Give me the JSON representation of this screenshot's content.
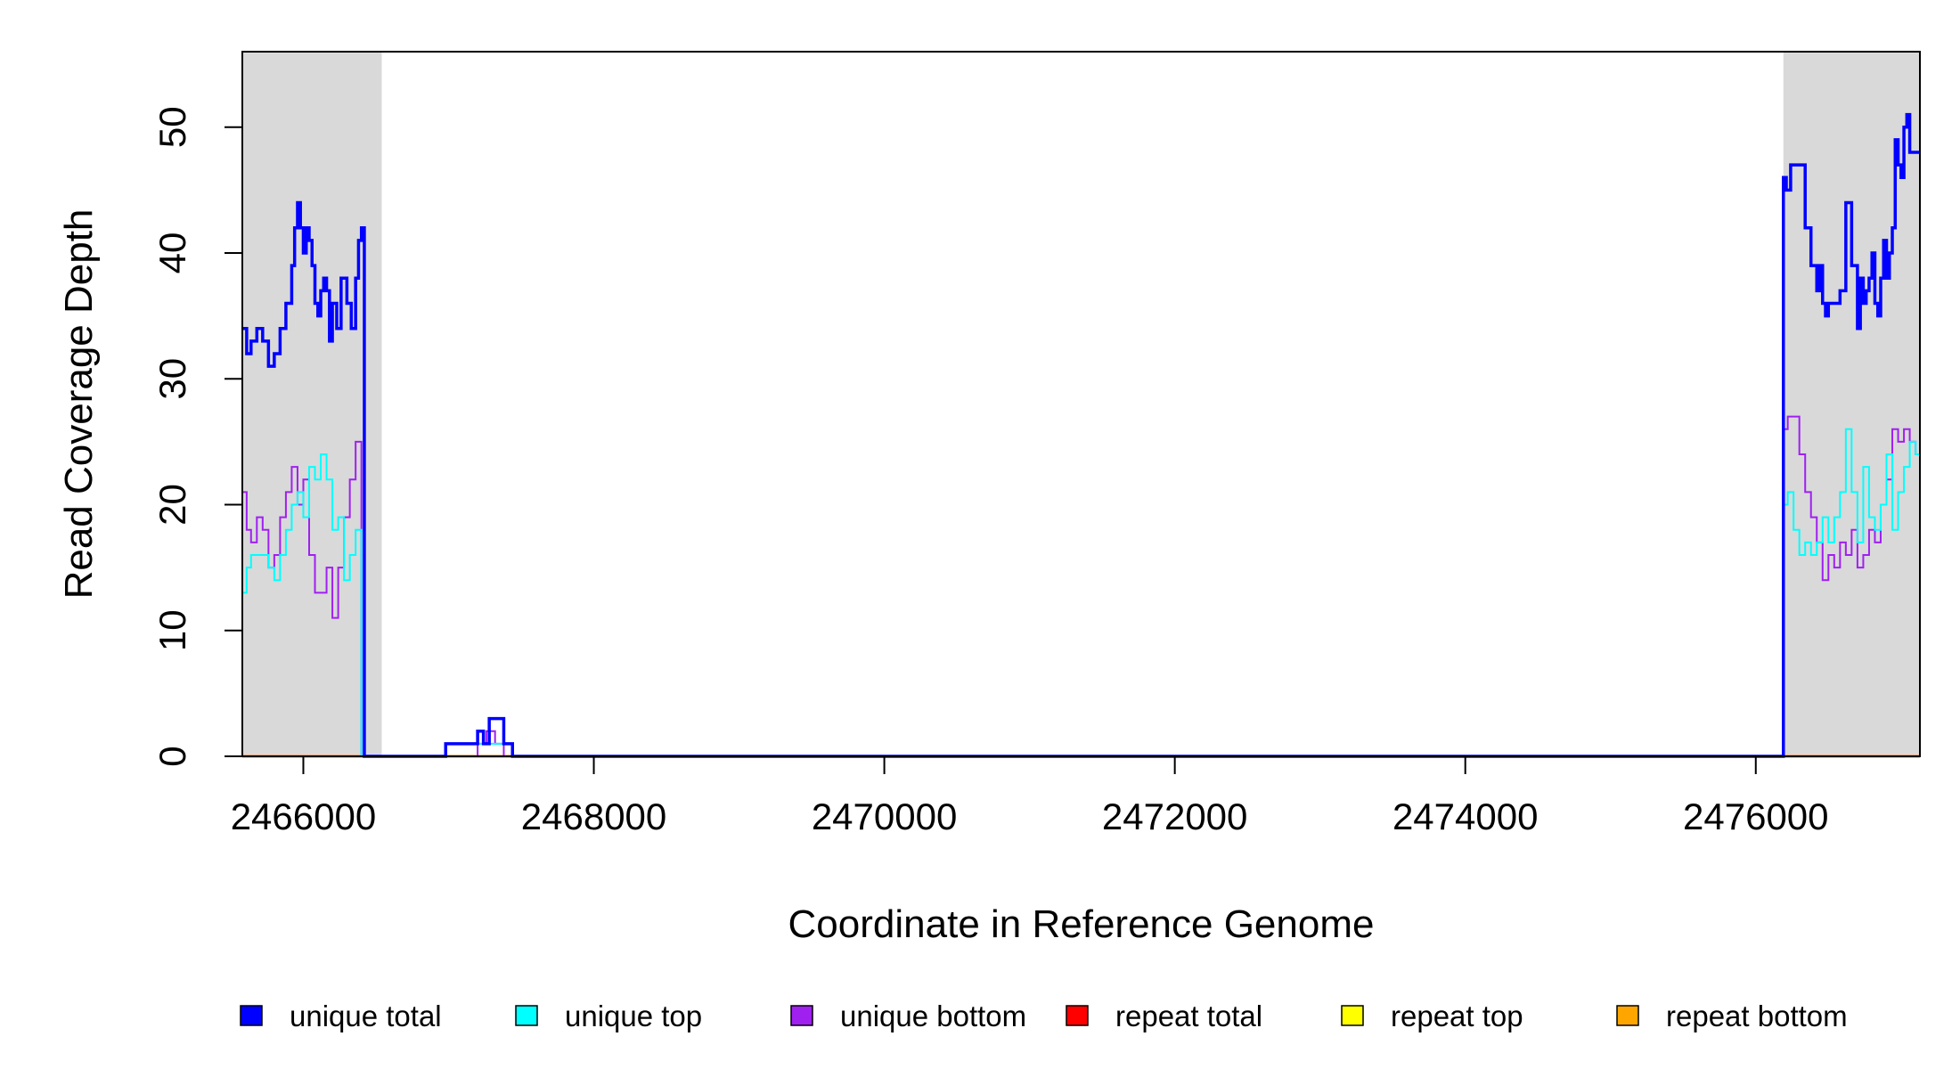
{
  "chart_data": {
    "type": "line",
    "title": "",
    "xlabel": "Coordinate in Reference Genome",
    "ylabel": "Read Coverage Depth",
    "xlim": [
      2465580,
      2477130
    ],
    "ylim": [
      0,
      56
    ],
    "x_ticks": [
      2466000,
      2468000,
      2470000,
      2472000,
      2474000,
      2476000
    ],
    "x_tick_labels": [
      "2466000",
      "2468000",
      "2470000",
      "2472000",
      "2474000",
      "2476000"
    ],
    "y_ticks": [
      0,
      10,
      20,
      30,
      40,
      50
    ],
    "y_tick_labels": [
      "0",
      "10",
      "20",
      "30",
      "40",
      "50"
    ],
    "grid": false,
    "legend_position": "bottom",
    "shaded_regions": [
      {
        "x_start": 2465580,
        "x_end": 2466540,
        "color": "#d9d9d9"
      },
      {
        "x_start": 2476190,
        "x_end": 2477130,
        "color": "#d9d9d9"
      }
    ],
    "series": [
      {
        "name": "unique total",
        "color": "#0000ff",
        "x": [
          2465580,
          2465610,
          2465640,
          2465680,
          2465720,
          2465760,
          2465800,
          2465840,
          2465880,
          2465920,
          2465940,
          2465960,
          2465980,
          2466000,
          2466020,
          2466040,
          2466060,
          2466080,
          2466100,
          2466120,
          2466140,
          2466160,
          2466180,
          2466200,
          2466230,
          2466260,
          2466300,
          2466330,
          2466360,
          2466380,
          2466400,
          2466420,
          2466440,
          2466460,
          2466480,
          2466500,
          2466520,
          2466540,
          2466560,
          2466570,
          2466600,
          2466800,
          2466980,
          2467200,
          2467240,
          2467280,
          2467380,
          2467440,
          2467460,
          2467600,
          2468500,
          2470000,
          2472000,
          2474000,
          2476000,
          2476180,
          2476190,
          2476210,
          2476240,
          2476280,
          2476340,
          2476380,
          2476420,
          2476440,
          2476460,
          2476480,
          2476500,
          2476540,
          2476580,
          2476620,
          2476660,
          2476700,
          2476720,
          2476740,
          2476760,
          2476780,
          2476800,
          2476820,
          2476840,
          2476860,
          2476880,
          2476900,
          2476920,
          2476940,
          2476960,
          2476980,
          2477000,
          2477020,
          2477040,
          2477060,
          2477080,
          2477100,
          2477120,
          2477130
        ],
        "y": [
          34,
          32,
          33,
          34,
          33,
          31,
          32,
          34,
          36,
          39,
          42,
          44,
          42,
          40,
          42,
          41,
          39,
          36,
          35,
          37,
          38,
          37,
          33,
          36,
          34,
          38,
          36,
          34,
          38,
          41,
          42,
          0,
          0,
          0,
          0,
          0,
          0,
          0,
          0,
          0,
          0,
          0,
          1,
          2,
          1,
          3,
          1,
          0,
          0,
          0,
          0,
          0,
          0,
          0,
          0,
          0,
          46,
          45,
          47,
          47,
          42,
          39,
          37,
          39,
          36,
          35,
          36,
          36,
          37,
          44,
          39,
          34,
          38,
          36,
          37,
          38,
          40,
          36,
          35,
          38,
          41,
          38,
          40,
          42,
          49,
          47,
          46,
          50,
          51,
          48,
          48,
          48,
          48,
          48
        ]
      },
      {
        "name": "unique top",
        "color": "#00ffff",
        "x": [
          2465580,
          2465610,
          2465640,
          2465680,
          2465720,
          2465760,
          2465800,
          2465840,
          2465880,
          2465920,
          2465960,
          2466000,
          2466040,
          2466080,
          2466120,
          2466160,
          2466200,
          2466240,
          2466280,
          2466320,
          2466360,
          2466400,
          2466440,
          2466480,
          2466500,
          2466520,
          2466540,
          2466560,
          2466600,
          2466980,
          2467100,
          2467200,
          2467300,
          2467380,
          2467440,
          2467600,
          2470000,
          2474000,
          2476180,
          2476190,
          2476220,
          2476260,
          2476300,
          2476340,
          2476380,
          2476420,
          2476460,
          2476500,
          2476540,
          2476580,
          2476620,
          2476660,
          2476700,
          2476740,
          2476780,
          2476820,
          2476860,
          2476900,
          2476940,
          2476980,
          2477020,
          2477060,
          2477100,
          2477130
        ],
        "y": [
          13,
          15,
          16,
          16,
          16,
          15,
          14,
          16,
          18,
          20,
          21,
          19,
          23,
          22,
          24,
          22,
          18,
          19,
          14,
          16,
          18,
          0,
          0,
          0,
          0,
          0,
          0,
          0,
          0,
          1,
          1,
          1,
          1,
          1,
          0,
          0,
          0,
          0,
          0,
          20,
          21,
          18,
          16,
          17,
          16,
          17,
          19,
          17,
          19,
          21,
          26,
          21,
          17,
          23,
          19,
          18,
          20,
          24,
          18,
          21,
          23,
          25,
          24,
          24
        ]
      },
      {
        "name": "unique bottom",
        "color": "#a020f0",
        "x": [
          2465580,
          2465610,
          2465640,
          2465680,
          2465720,
          2465760,
          2465800,
          2465840,
          2465880,
          2465920,
          2465960,
          2466000,
          2466040,
          2466080,
          2466120,
          2466160,
          2466200,
          2466240,
          2466280,
          2466320,
          2466360,
          2466400,
          2466440,
          2466480,
          2466500,
          2466520,
          2466540,
          2466560,
          2466600,
          2466980,
          2467200,
          2467260,
          2467320,
          2467380,
          2467440,
          2467600,
          2470000,
          2474000,
          2476180,
          2476190,
          2476220,
          2476260,
          2476300,
          2476340,
          2476380,
          2476420,
          2476460,
          2476500,
          2476540,
          2476580,
          2476620,
          2476660,
          2476700,
          2476740,
          2476780,
          2476820,
          2476860,
          2476900,
          2476940,
          2476980,
          2477020,
          2477060,
          2477100,
          2477130
        ],
        "y": [
          21,
          18,
          17,
          19,
          18,
          15,
          16,
          19,
          21,
          23,
          20,
          22,
          16,
          13,
          13,
          15,
          11,
          15,
          19,
          22,
          25,
          0,
          0,
          0,
          0,
          0,
          0,
          0,
          0,
          0,
          1,
          2,
          1,
          0,
          0,
          0,
          0,
          0,
          0,
          26,
          27,
          27,
          24,
          21,
          19,
          17,
          14,
          16,
          15,
          17,
          16,
          18,
          15,
          16,
          18,
          17,
          20,
          22,
          26,
          25,
          26,
          25,
          24,
          24
        ]
      },
      {
        "name": "repeat total",
        "color": "#ff0000",
        "x": [
          2465580,
          2477130
        ],
        "y": [
          0,
          0
        ]
      },
      {
        "name": "repeat top",
        "color": "#ffff00",
        "x": [
          2465580,
          2477130
        ],
        "y": [
          0,
          0
        ]
      },
      {
        "name": "repeat bottom",
        "color": "#ffa500",
        "x": [
          2465580,
          2477130
        ],
        "y": [
          0,
          0
        ]
      }
    ]
  }
}
